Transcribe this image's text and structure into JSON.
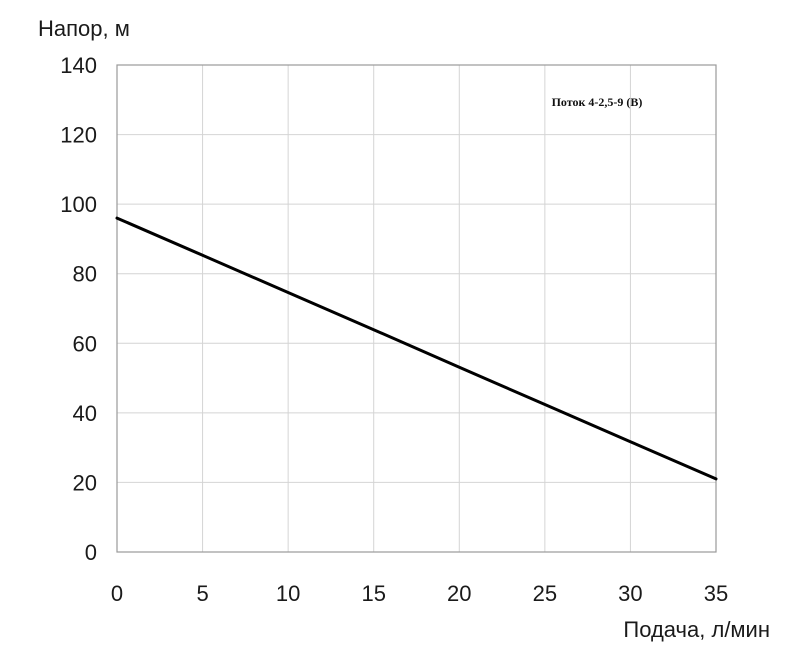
{
  "chart_data": {
    "type": "line",
    "ylabel": "Напор, м",
    "xlabel": "Подача, л/мин",
    "xlim": [
      0,
      35
    ],
    "ylim": [
      0,
      140
    ],
    "x_ticks": [
      "0",
      "5",
      "10",
      "15",
      "20",
      "25",
      "30",
      "35"
    ],
    "y_ticks": [
      "0",
      "20",
      "40",
      "60",
      "80",
      "100",
      "120",
      "140"
    ],
    "grid": true,
    "legend_position": "top-right",
    "series": [
      {
        "name": "Поток 4-2,5-9 (В)",
        "color": "#000000",
        "x": [
          0,
          5,
          10,
          15,
          20,
          25,
          30,
          35
        ],
        "y": [
          96,
          85.3,
          74.6,
          63.9,
          53.1,
          42.4,
          31.7,
          21
        ]
      }
    ]
  }
}
